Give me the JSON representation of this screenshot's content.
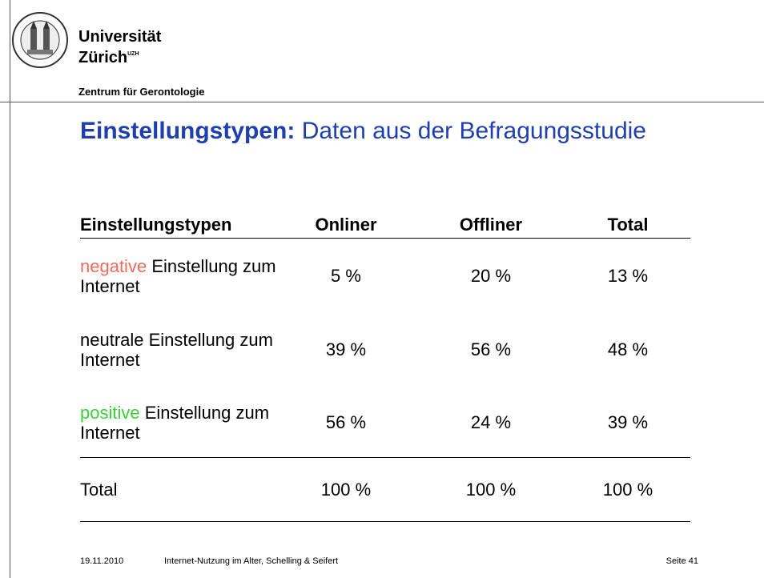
{
  "header": {
    "university_line1": "Universität",
    "university_line2": "Zürich",
    "university_sup": "UZH",
    "department": "Zentrum für Gerontologie"
  },
  "title": {
    "bold": "Einstellungstypen:",
    "rest": "Daten aus der Befragungsstudie"
  },
  "table": {
    "columns": [
      "Einstellungstypen",
      "Onliner",
      "Offliner",
      "Total"
    ],
    "rows": [
      {
        "label": {
          "highlight": "negative",
          "rest": "Einstellung zum Internet"
        },
        "cells": [
          "5 %",
          "20 %",
          "13 %"
        ]
      },
      {
        "label": {
          "rest": "neutrale Einstellung zum Internet"
        },
        "cells": [
          "39 %",
          "56 %",
          "48 %"
        ]
      },
      {
        "label": {
          "highlight": "positive",
          "rest": "Einstellung zum Internet"
        },
        "cells": [
          "56 %",
          "24 %",
          "39 %"
        ]
      }
    ],
    "total": {
      "label": "Total",
      "cells": [
        "100 %",
        "100 %",
        "100 %"
      ]
    }
  },
  "footer": {
    "date": "19.11.2010",
    "text": "Internet-Nutzung im Alter, Schelling & Seifert",
    "page": "Seite 41"
  }
}
